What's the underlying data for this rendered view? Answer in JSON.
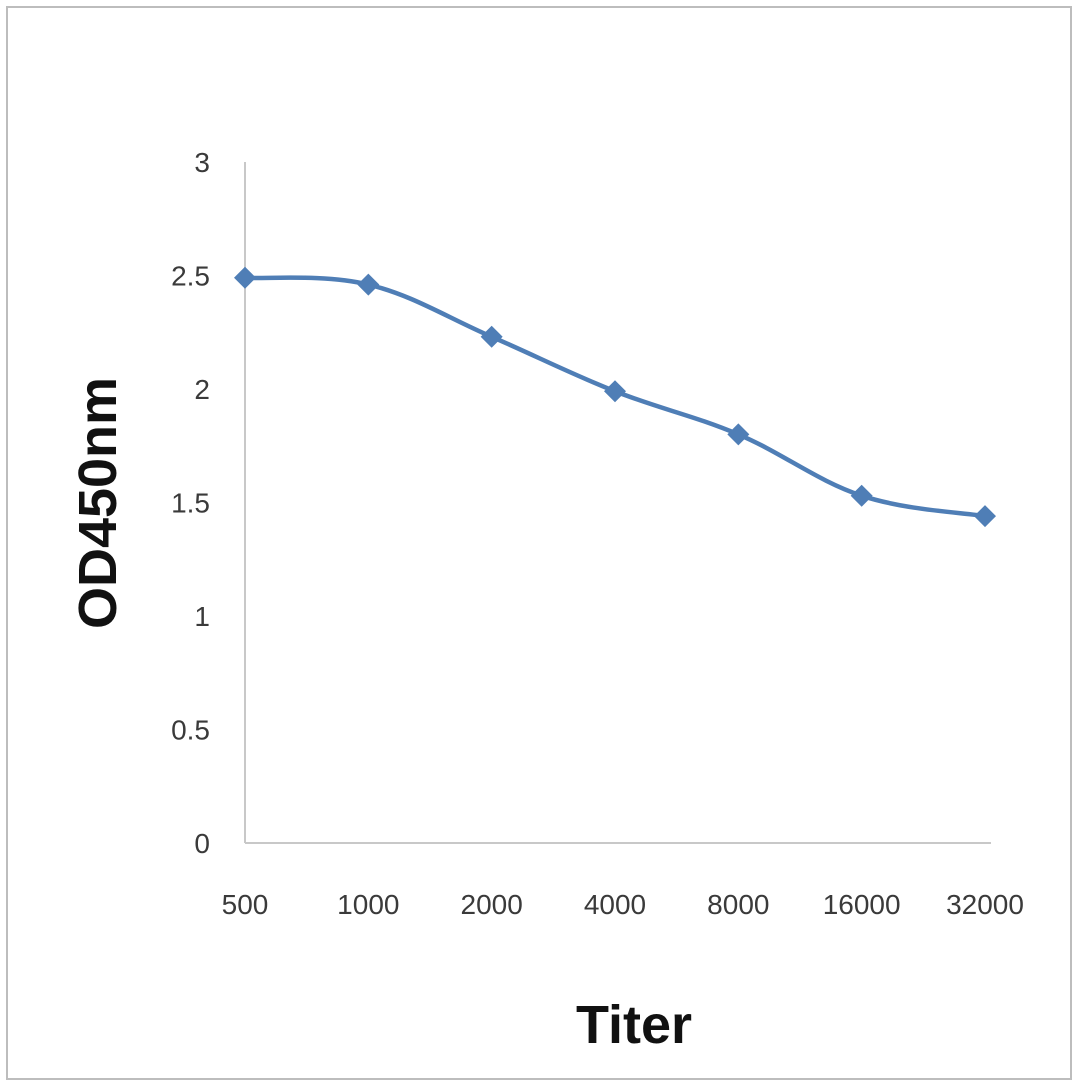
{
  "chart_data": {
    "type": "line",
    "categories": [
      "500",
      "1000",
      "2000",
      "4000",
      "8000",
      "16000",
      "32000"
    ],
    "series": [
      {
        "values": [
          2.49,
          2.46,
          2.23,
          1.99,
          1.8,
          1.53,
          1.44
        ]
      }
    ],
    "xlabel": "Titer",
    "ylabel": "OD450nm",
    "ylim": [
      0,
      3
    ],
    "yticks": [
      "0",
      "0.5",
      "1",
      "1.5",
      "2",
      "2.5",
      "3"
    ],
    "grid": false,
    "marker": "diamond",
    "line_color": "#4f7eb6",
    "axis_color": "#c8c8c8"
  }
}
